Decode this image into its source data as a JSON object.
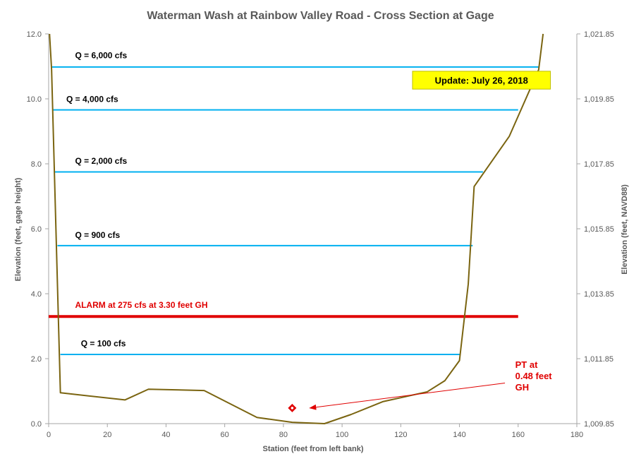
{
  "chart_data": {
    "type": "line",
    "title": "Waterman Wash at Rainbow Valley Road - Cross Section at Gage",
    "xlabel": "Station (feet from left bank)",
    "ylabel": "Elevation  (feet, gage height)",
    "y2label": "Elevation  (feet, NAVD88)",
    "xlim": [
      0,
      180
    ],
    "ylim": [
      0,
      12
    ],
    "x_ticks": [
      "0",
      "20",
      "40",
      "60",
      "80",
      "100",
      "120",
      "140",
      "160",
      "180"
    ],
    "y_ticks": [
      "0.0",
      "2.0",
      "4.0",
      "6.0",
      "8.0",
      "10.0",
      "12.0"
    ],
    "y2_ticks": [
      "1,009.85",
      "1,011.85",
      "1,013.85",
      "1,015.85",
      "1,017.85",
      "1,019.85",
      "1,021.85"
    ],
    "colors": {
      "cross_section": "#7a6410",
      "flow_lines": "#00b0f0",
      "alarm": "#e00000",
      "pt_marker": "#e00000",
      "update_box": "#ffff00",
      "axis": "#595959"
    },
    "cross_section": {
      "x": [
        0.3,
        1,
        4,
        26,
        34,
        53,
        71,
        83,
        94,
        103,
        114,
        129,
        135,
        140,
        143,
        145,
        157,
        167,
        168.5
      ],
      "y": [
        12,
        10.9,
        0.95,
        0.73,
        1.06,
        1.02,
        0.19,
        0.04,
        0.0,
        0.28,
        0.68,
        0.98,
        1.32,
        1.94,
        4.3,
        7.3,
        8.85,
        10.9,
        12
      ]
    },
    "flow_lines": [
      {
        "label": "Q = 6,000  cfs",
        "x1": 1.2,
        "x2": 167,
        "y": 10.98,
        "label_x": 9,
        "label_y": 11.25
      },
      {
        "label": "Q = 4,000  cfs",
        "x1": 1.5,
        "x2": 160,
        "y": 9.66,
        "label_x": 6,
        "label_y": 9.9
      },
      {
        "label": "Q = 2,000  cfs",
        "x1": 2,
        "x2": 148,
        "y": 7.75,
        "label_x": 9,
        "label_y": 8.0
      },
      {
        "label": "Q = 900  cfs",
        "x1": 3,
        "x2": 144.5,
        "y": 5.48,
        "label_x": 9,
        "label_y": 5.72
      },
      {
        "label": "Q = 100  cfs",
        "x1": 4,
        "x2": 140,
        "y": 2.13,
        "label_x": 11,
        "label_y": 2.38
      }
    ],
    "alarm": {
      "label": "ALARM at 275  cfs at 3.30  feet GH",
      "x1": 0,
      "x2": 160,
      "y": 3.3,
      "label_x": 9,
      "label_y": 3.57
    },
    "pt": {
      "x": 83,
      "y": 0.48,
      "label_lines": [
        "PT at",
        "0.48  feet",
        "GH"
      ],
      "label_x": 159,
      "label_y": 1.72,
      "arrow_from": [
        155.5,
        1.25
      ],
      "arrow_to": [
        89,
        0.48
      ]
    },
    "annotation": {
      "text": "Update: July 26, 2018",
      "x1": 124,
      "x2": 171,
      "y1": 10.3,
      "y2": 10.85
    }
  }
}
